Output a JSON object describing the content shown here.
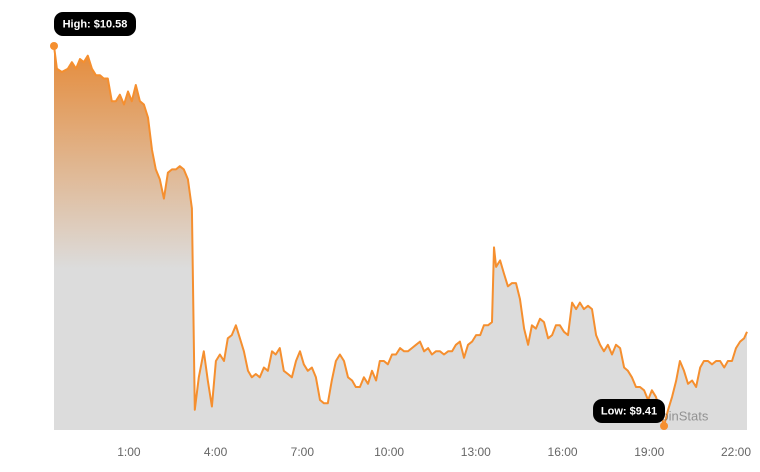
{
  "chart_data": {
    "type": "area",
    "color": "#f58f2f",
    "x": [
      -1.59,
      -1.49,
      -1.32,
      -1.11,
      -0.97,
      -0.83,
      -0.69,
      -0.56,
      -0.42,
      -0.28,
      -0.14,
      0.0,
      0.13,
      0.27,
      0.41,
      0.55,
      0.69,
      0.83,
      0.97,
      1.1,
      1.24,
      1.38,
      1.52,
      1.66,
      1.8,
      1.93,
      2.07,
      2.21,
      2.35,
      2.49,
      2.63,
      2.76,
      2.9,
      3.04,
      3.18,
      3.28,
      3.42,
      3.59,
      3.73,
      3.87,
      4.01,
      4.15,
      4.29,
      4.42,
      4.56,
      4.7,
      4.84,
      4.98,
      5.12,
      5.25,
      5.39,
      5.53,
      5.67,
      5.81,
      5.95,
      6.08,
      6.22,
      6.36,
      6.5,
      6.64,
      6.78,
      6.92,
      7.05,
      7.19,
      7.33,
      7.47,
      7.61,
      7.75,
      7.88,
      8.02,
      8.16,
      8.3,
      8.44,
      8.58,
      8.72,
      8.85,
      8.99,
      9.13,
      9.27,
      9.41,
      9.55,
      9.68,
      9.82,
      9.96,
      10.1,
      10.24,
      10.38,
      10.52,
      10.65,
      10.79,
      10.93,
      11.07,
      11.21,
      11.35,
      11.48,
      11.62,
      11.76,
      11.9,
      12.04,
      12.18,
      12.31,
      12.45,
      12.59,
      12.73,
      12.87,
      13.01,
      13.15,
      13.28,
      13.42,
      13.56,
      13.63,
      13.7,
      13.84,
      13.97,
      14.11,
      14.25,
      14.39,
      14.53,
      14.67,
      14.81,
      14.94,
      15.08,
      15.22,
      15.36,
      15.5,
      15.64,
      15.77,
      15.91,
      16.05,
      16.19,
      16.33,
      16.47,
      16.6,
      16.74,
      16.88,
      17.02,
      17.16,
      17.3,
      17.43,
      17.57,
      17.71,
      17.85,
      17.99,
      18.13,
      18.26,
      18.4,
      18.54,
      18.68,
      18.82,
      18.96,
      19.09,
      19.23,
      19.37,
      19.51,
      19.65,
      19.79,
      19.93,
      20.06,
      20.2,
      20.34,
      20.48,
      20.62,
      20.76,
      20.89,
      21.03,
      21.17,
      21.31,
      21.45,
      21.59,
      21.72,
      21.86,
      22.0,
      22.14,
      22.28,
      22.38
    ],
    "values": [
      10.58,
      10.51,
      10.5,
      10.51,
      10.53,
      10.51,
      10.54,
      10.53,
      10.55,
      10.51,
      10.49,
      10.49,
      10.48,
      10.48,
      10.41,
      10.41,
      10.43,
      10.4,
      10.44,
      10.41,
      10.46,
      10.41,
      10.4,
      10.36,
      10.26,
      10.2,
      10.17,
      10.11,
      10.19,
      10.2,
      10.2,
      10.21,
      10.2,
      10.17,
      10.08,
      9.46,
      9.56,
      9.64,
      9.55,
      9.47,
      9.61,
      9.63,
      9.61,
      9.68,
      9.69,
      9.72,
      9.68,
      9.64,
      9.58,
      9.56,
      9.57,
      9.56,
      9.59,
      9.58,
      9.64,
      9.63,
      9.65,
      9.58,
      9.57,
      9.56,
      9.61,
      9.64,
      9.6,
      9.58,
      9.59,
      9.56,
      9.49,
      9.48,
      9.48,
      9.55,
      9.61,
      9.63,
      9.61,
      9.56,
      9.55,
      9.53,
      9.53,
      9.56,
      9.54,
      9.58,
      9.55,
      9.61,
      9.61,
      9.6,
      9.63,
      9.63,
      9.65,
      9.64,
      9.64,
      9.65,
      9.66,
      9.67,
      9.64,
      9.65,
      9.63,
      9.64,
      9.64,
      9.63,
      9.64,
      9.64,
      9.66,
      9.67,
      9.62,
      9.66,
      9.67,
      9.69,
      9.69,
      9.72,
      9.72,
      9.73,
      9.96,
      9.9,
      9.92,
      9.88,
      9.84,
      9.85,
      9.85,
      9.8,
      9.71,
      9.66,
      9.72,
      9.71,
      9.74,
      9.73,
      9.68,
      9.69,
      9.72,
      9.72,
      9.7,
      9.69,
      9.79,
      9.77,
      9.79,
      9.77,
      9.78,
      9.77,
      9.69,
      9.66,
      9.64,
      9.66,
      9.63,
      9.66,
      9.65,
      9.59,
      9.58,
      9.56,
      9.53,
      9.53,
      9.52,
      9.49,
      9.52,
      9.5,
      9.46,
      9.41,
      9.46,
      9.5,
      9.55,
      9.61,
      9.58,
      9.54,
      9.55,
      9.53,
      9.59,
      9.61,
      9.61,
      9.6,
      9.61,
      9.61,
      9.59,
      9.61,
      9.61,
      9.65,
      9.67,
      9.68,
      9.7
    ],
    "xticks": [
      {
        "value": 1,
        "label": "1:00"
      },
      {
        "value": 4,
        "label": "4:00"
      },
      {
        "value": 7,
        "label": "7:00"
      },
      {
        "value": 10,
        "label": "10:00"
      },
      {
        "value": 13,
        "label": "13:00"
      },
      {
        "value": 16,
        "label": "16:00"
      },
      {
        "value": 19,
        "label": "19:00"
      },
      {
        "value": 22,
        "label": "22:00"
      }
    ],
    "high": {
      "label": "High: $10.58",
      "value": 10.58
    },
    "low": {
      "label": "Low: $9.41",
      "value": 9.41
    },
    "watermark": "CoinStats"
  }
}
